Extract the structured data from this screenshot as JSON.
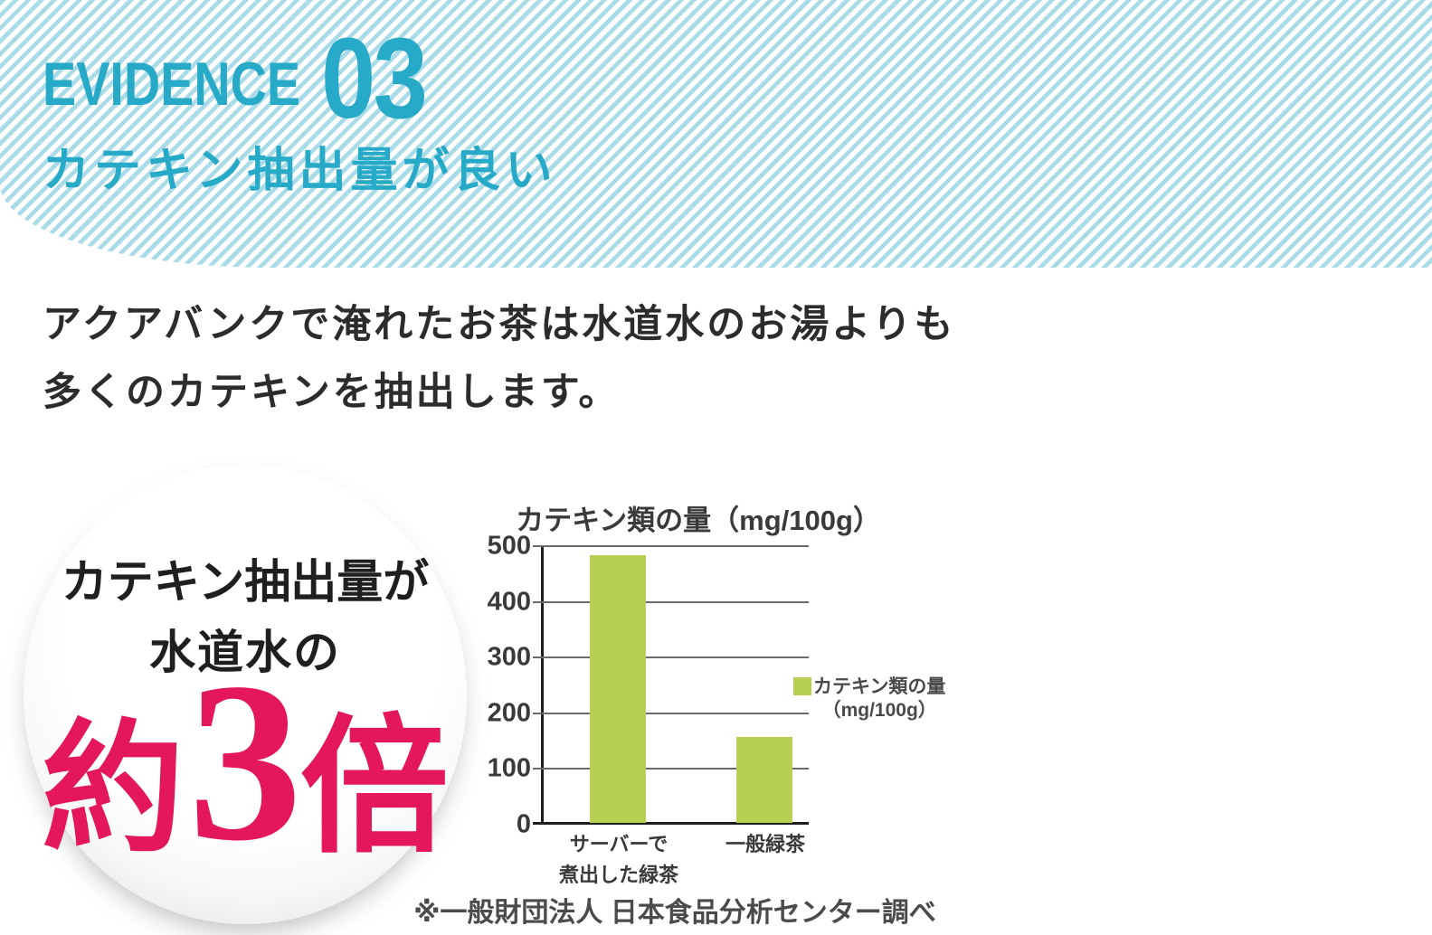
{
  "header": {
    "evidence_label": "EVIDENCE",
    "evidence_number": "03",
    "subtitle": "カテキン抽出量が良い",
    "accent_color": "#27a9c8",
    "stripe_color": "#a9dbe9"
  },
  "intro": {
    "line1": "アクアバンクで淹れたお茶は水道水のお湯よりも",
    "line2": "多くのカテキンを抽出します。"
  },
  "badge": {
    "line1": "カテキン抽出量が",
    "line2": "水道水の",
    "emphasis_prefix": "約",
    "emphasis_number": "3",
    "emphasis_suffix": "倍",
    "emphasis_color": "#e4175c"
  },
  "chart_data": {
    "type": "bar",
    "title": "カテキン類の量（mg/100g）",
    "categories": [
      "サーバーで\n煮出した緑茶",
      "一般緑茶"
    ],
    "values": [
      480,
      155
    ],
    "ylim": [
      0,
      500
    ],
    "yticks": [
      0,
      100,
      200,
      300,
      400,
      500
    ],
    "grid": true,
    "legend_position": "right",
    "bar_color": "#b7cf52",
    "legend": {
      "line1": "カテキン類の量",
      "line2": "（mg/100g）"
    },
    "footnote": "※一般財団法人 日本食品分析センター調べ"
  }
}
